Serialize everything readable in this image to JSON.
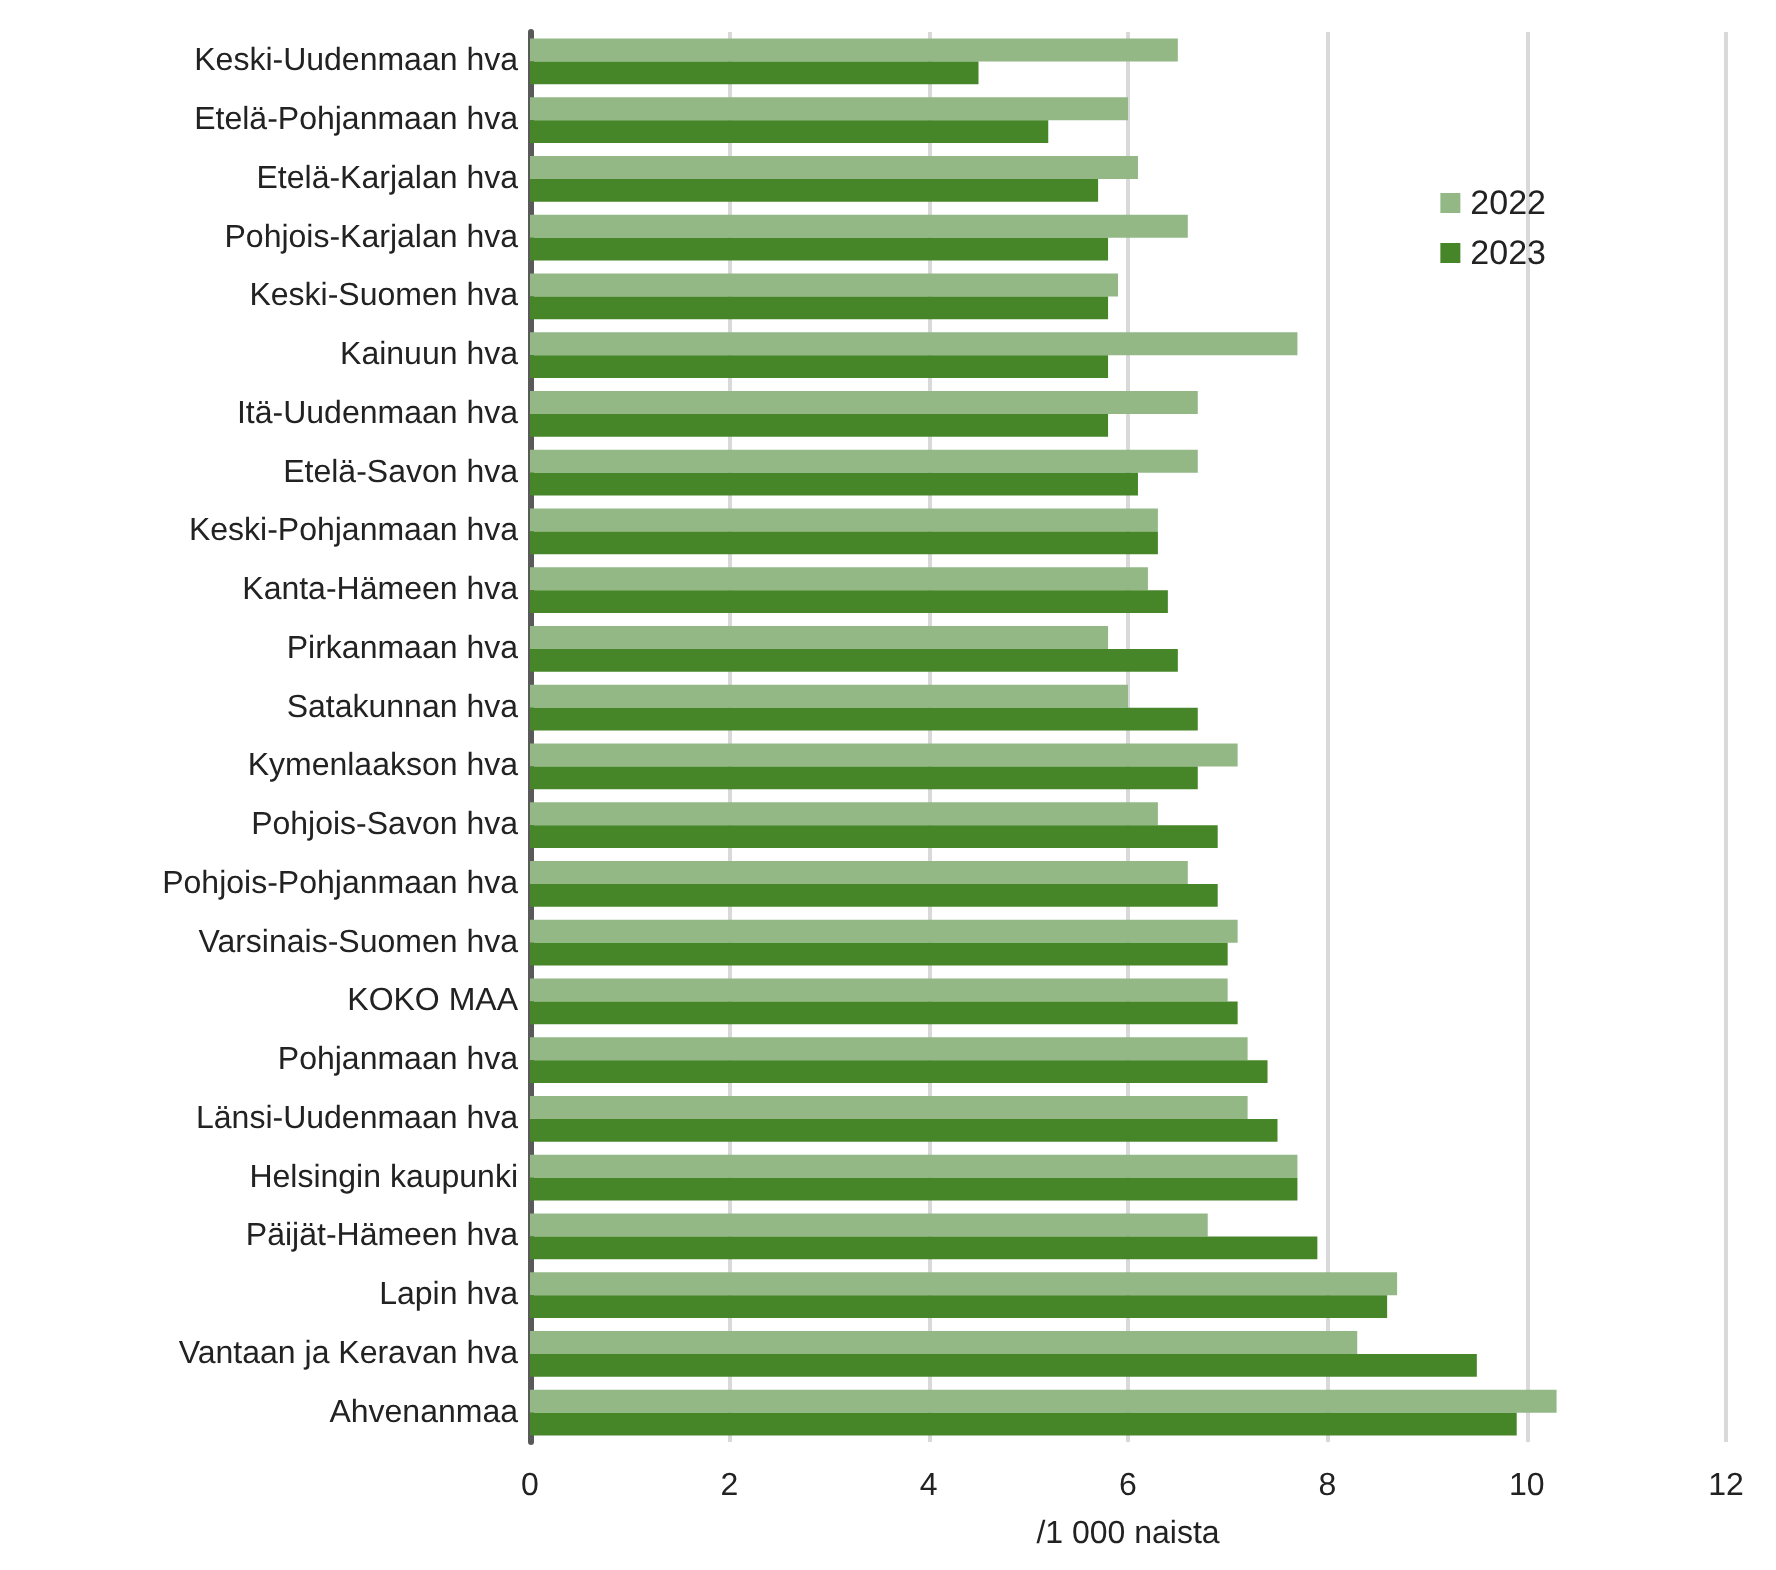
{
  "chart_data": {
    "type": "bar",
    "orientation": "horizontal",
    "xlabel": "/1 000 naista",
    "categories": [
      "Keski-Uudenmaan hva",
      "Etelä-Pohjanmaan hva",
      "Etelä-Karjalan hva",
      "Pohjois-Karjalan hva",
      "Keski-Suomen hva",
      "Kainuun hva",
      "Itä-Uudenmaan hva",
      "Etelä-Savon hva",
      "Keski-Pohjanmaan hva",
      "Kanta-Hämeen hva",
      "Pirkanmaan hva",
      "Satakunnan hva",
      "Kymenlaakson hva",
      "Pohjois-Savon hva",
      "Pohjois-Pohjanmaan hva",
      "Varsinais-Suomen hva",
      "KOKO MAA",
      "Pohjanmaan hva",
      "Länsi-Uudenmaan hva",
      "Helsingin kaupunki",
      "Päijät-Hämeen hva",
      "Lapin hva",
      "Vantaan ja Keravan hva",
      "Ahvenanmaa"
    ],
    "series": [
      {
        "name": "2022",
        "color": "#93b886",
        "values": [
          6.5,
          6.0,
          6.1,
          6.6,
          5.9,
          7.7,
          6.7,
          6.7,
          6.3,
          6.2,
          5.8,
          6.0,
          7.1,
          6.3,
          6.6,
          7.1,
          7.0,
          7.2,
          7.2,
          7.7,
          6.8,
          8.7,
          8.3,
          10.3
        ]
      },
      {
        "name": "2023",
        "color": "#468629",
        "values": [
          4.5,
          5.2,
          5.7,
          5.8,
          5.8,
          5.8,
          5.8,
          6.1,
          6.3,
          6.4,
          6.5,
          6.7,
          6.7,
          6.9,
          6.9,
          7.0,
          7.1,
          7.4,
          7.5,
          7.7,
          7.9,
          8.6,
          9.5,
          9.9
        ]
      }
    ],
    "xlim": [
      0,
      12
    ],
    "xticks": [
      0,
      2,
      4,
      6,
      8,
      10,
      12
    ],
    "grid": "x",
    "legend": "top right"
  }
}
